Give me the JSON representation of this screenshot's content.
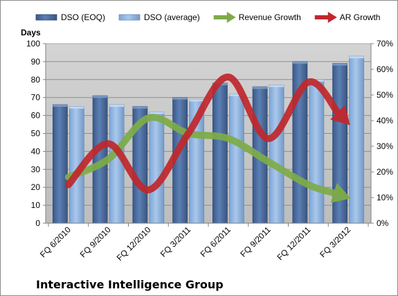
{
  "chart_data": {
    "type": "bar",
    "title": "",
    "categories": [
      "FQ 6/2010",
      "FQ 9/2010",
      "FQ 12/2010",
      "FQ 3/2011",
      "FQ 6/2011",
      "FQ 9/2011",
      "FQ 12/2011",
      "FQ 3/2012"
    ],
    "ylabel": "Days",
    "ylim": [
      0,
      100
    ],
    "y_ticks": [
      "0",
      "10",
      "20",
      "30",
      "40",
      "50",
      "60",
      "70",
      "80",
      "90",
      "100"
    ],
    "y2lim": [
      0,
      70
    ],
    "y2_ticks": [
      "0%",
      "10%",
      "20%",
      "30%",
      "40%",
      "50%",
      "60%",
      "70%"
    ],
    "grid": true,
    "legend_position": "top",
    "series": [
      {
        "name": "DSO (EOQ)",
        "kind": "bar",
        "axis": "left",
        "color": "#4f6fa0",
        "values": [
          66,
          71,
          65,
          70,
          78,
          76,
          90,
          89
        ]
      },
      {
        "name": "DSO (average)",
        "kind": "bar",
        "axis": "left",
        "color": "#8fb4e0",
        "values": [
          65,
          66,
          62,
          69,
          72,
          77,
          80,
          93
        ]
      },
      {
        "name": "Revenue Growth",
        "kind": "arrow",
        "axis": "right",
        "color": "#7eab48",
        "values": [
          18,
          25,
          41,
          35,
          33,
          24,
          15,
          10
        ]
      },
      {
        "name": "AR Growth",
        "kind": "arrow",
        "axis": "right",
        "color": "#c0282c",
        "values": [
          15,
          31,
          13,
          35,
          57,
          33,
          55,
          39
        ]
      }
    ],
    "annotation": "Interactive Intelligence Group"
  }
}
